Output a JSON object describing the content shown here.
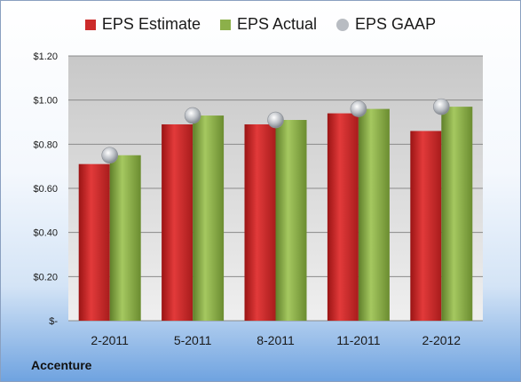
{
  "company": "Accenture",
  "chart_data": {
    "type": "bar",
    "categories": [
      "2-2011",
      "5-2011",
      "8-2011",
      "11-2011",
      "2-2012"
    ],
    "series": [
      {
        "name": "EPS Estimate",
        "kind": "bar",
        "color": "#cc2b2b",
        "values": [
          0.71,
          0.89,
          0.89,
          0.94,
          0.86
        ]
      },
      {
        "name": "EPS Actual",
        "kind": "bar",
        "color": "#8cb04a",
        "values": [
          0.75,
          0.93,
          0.91,
          0.96,
          0.97
        ]
      },
      {
        "name": "EPS GAAP",
        "kind": "marker",
        "color": "#b8bcc2",
        "values": [
          0.75,
          0.93,
          0.91,
          0.96,
          0.97
        ]
      }
    ],
    "ylim": [
      0,
      1.2
    ],
    "yticks": [
      0,
      0.2,
      0.4,
      0.6,
      0.8,
      1.0,
      1.2
    ],
    "ytick_labels": [
      "$-",
      "$0.20",
      "$0.40",
      "$0.60",
      "$0.80",
      "$1.00",
      "$1.20"
    ],
    "grid": true,
    "legend_position": "top-center"
  }
}
